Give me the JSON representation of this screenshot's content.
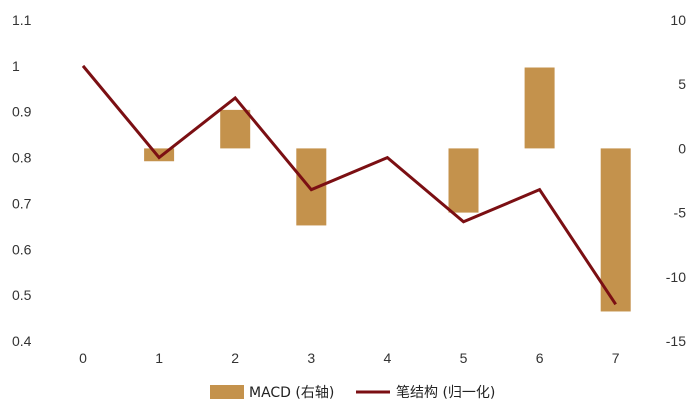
{
  "chart_data": {
    "type": "bar+line",
    "categories": [
      "0",
      "1",
      "2",
      "3",
      "4",
      "5",
      "6",
      "7"
    ],
    "series": [
      {
        "name": "MACD (右轴)",
        "type": "bar",
        "axis": "right",
        "color": "#C4924C",
        "values": [
          null,
          -1,
          3,
          -6,
          null,
          -5,
          6.3,
          -12.7
        ]
      },
      {
        "name": "笔结构 (归一化)",
        "type": "line",
        "axis": "left",
        "color": "#7B0F13",
        "values": [
          1.0,
          0.8,
          0.93,
          0.73,
          0.8,
          0.66,
          0.73,
          0.48
        ]
      }
    ],
    "left_axis": {
      "ticks": [
        "0.4",
        "0.5",
        "0.6",
        "0.7",
        "0.8",
        "0.9",
        "1",
        "1.1"
      ],
      "ylim": [
        0.4,
        1.1
      ]
    },
    "right_axis": {
      "ticks": [
        "-15",
        "-10",
        "-5",
        "0",
        "5",
        "10"
      ],
      "ylim": [
        -15,
        10
      ]
    },
    "grid": false,
    "legend": {
      "position": "bottom",
      "items": [
        "MACD (右轴)",
        "笔结构 (归一化)"
      ]
    }
  }
}
